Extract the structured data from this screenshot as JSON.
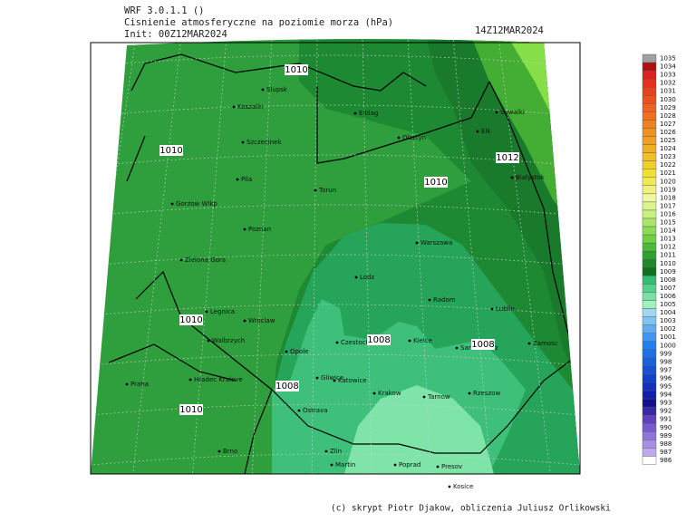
{
  "header": {
    "model": "WRF 3.0.1.1 ()",
    "title": "Cisnienie atmosferyczne na poziomie morza (hPa)",
    "init": "Init: 00Z12MAR2024",
    "valid": "14Z12MAR2024"
  },
  "isobar_labels": [
    "1010",
    "1010",
    "1010",
    "1010",
    "1010",
    "1012",
    "1008",
    "1008",
    "1008"
  ],
  "cities": [
    "Slupsk",
    "Koszalin",
    "Elblag",
    "Suwalki",
    "Elk",
    "Olsztyn",
    "Szczecinek",
    "Bialystok",
    "Pila",
    "Torun",
    "Gorzow Wlkp",
    "Poznan",
    "Warszawa",
    "Zielona Gora",
    "Lodz",
    "Radom",
    "Lublin",
    "Legnica",
    "Wroclaw",
    "Walbrzych",
    "Opole",
    "Czestochowa",
    "Kielce",
    "Sandomierz",
    "Zamosc",
    "Praha",
    "Hradec Kralove",
    "Gliwice",
    "Katowice",
    "Krakow",
    "Tarnow",
    "Rzeszow",
    "Ostrava",
    "Brno",
    "Zlin",
    "Martin",
    "Poprad",
    "Presov",
    "Kosice"
  ],
  "colorbar": {
    "labels": [
      "1035",
      "1034",
      "1033",
      "1032",
      "1031",
      "1030",
      "1029",
      "1028",
      "1027",
      "1026",
      "1025",
      "1024",
      "1023",
      "1022",
      "1021",
      "1020",
      "1019",
      "1018",
      "1017",
      "1016",
      "1015",
      "1014",
      "1013",
      "1012",
      "1011",
      "1010",
      "1009",
      "1008",
      "1007",
      "1006",
      "1005",
      "1004",
      "1003",
      "1002",
      "1001",
      "1000",
      "999",
      "998",
      "997",
      "996",
      "995",
      "994",
      "993",
      "992",
      "991",
      "990",
      "989",
      "988",
      "987",
      "986"
    ]
  },
  "footer": "(c) skrypt Piotr Djakow, obliczenia Juliusz Orlikowski"
}
